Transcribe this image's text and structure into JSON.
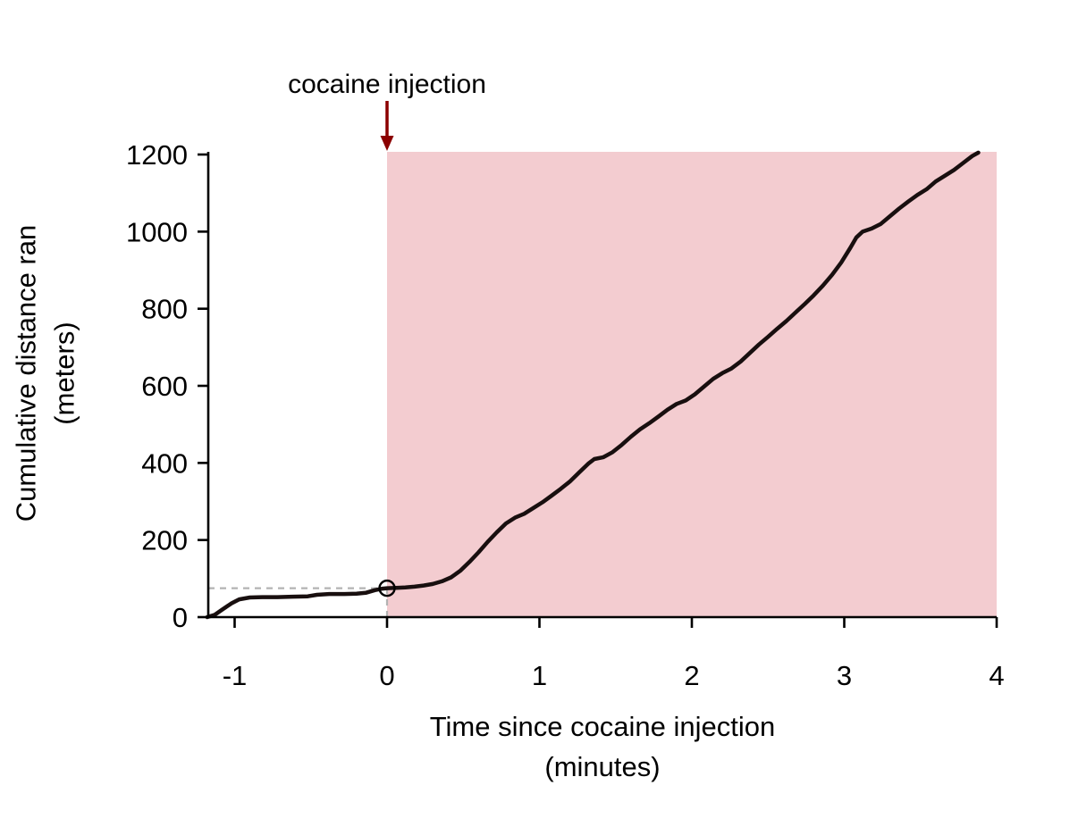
{
  "chart_data": {
    "type": "line",
    "title": "",
    "xlabel": "Time since cocaine injection (minutes)",
    "ylabel": "Cumulative distance ran (meters)",
    "labels": {
      "annotation": "cocaine injection",
      "xlabel_line1": "Time since cocaine injection",
      "xlabel_line2": "(minutes)",
      "ylabel_line1": "Cumulative distance ran",
      "ylabel_line2": "(meters)"
    },
    "x_ticks": [
      -1,
      0,
      1,
      2,
      3,
      4
    ],
    "y_ticks": [
      0,
      200,
      400,
      600,
      800,
      1000,
      1200
    ],
    "xlim": [
      -1.173,
      4
    ],
    "ylim": [
      0,
      1207
    ],
    "grid": false,
    "legend": "none",
    "shaded_region": {
      "x0": 0,
      "x1": 4,
      "color": "#f3ccd0"
    },
    "annotation_arrow": {
      "x": 0,
      "color": "#8b0000"
    },
    "injection_point": {
      "x": 0,
      "y": 75
    },
    "dashed_guides": {
      "y": 75,
      "x": 0,
      "color": "#b3b3b3"
    },
    "series": [
      {
        "name": "cumulative distance ran",
        "color": "#180f0f",
        "points": [
          [
            -1.18,
            0
          ],
          [
            -1.13,
            6
          ],
          [
            -1.08,
            20
          ],
          [
            -1.02,
            36
          ],
          [
            -0.97,
            46
          ],
          [
            -0.9,
            51
          ],
          [
            -0.82,
            52
          ],
          [
            -0.72,
            52
          ],
          [
            -0.62,
            53
          ],
          [
            -0.52,
            54
          ],
          [
            -0.46,
            58
          ],
          [
            -0.38,
            60
          ],
          [
            -0.28,
            60
          ],
          [
            -0.2,
            61
          ],
          [
            -0.14,
            63
          ],
          [
            -0.08,
            70
          ],
          [
            -0.03,
            74
          ],
          [
            0,
            75
          ],
          [
            0.06,
            76
          ],
          [
            0.12,
            77
          ],
          [
            0.18,
            79
          ],
          [
            0.24,
            82
          ],
          [
            0.3,
            86
          ],
          [
            0.36,
            93
          ],
          [
            0.42,
            103
          ],
          [
            0.48,
            120
          ],
          [
            0.54,
            143
          ],
          [
            0.6,
            168
          ],
          [
            0.66,
            195
          ],
          [
            0.72,
            220
          ],
          [
            0.78,
            243
          ],
          [
            0.84,
            258
          ],
          [
            0.9,
            268
          ],
          [
            0.96,
            283
          ],
          [
            1.02,
            298
          ],
          [
            1.08,
            315
          ],
          [
            1.14,
            333
          ],
          [
            1.2,
            352
          ],
          [
            1.26,
            375
          ],
          [
            1.32,
            398
          ],
          [
            1.36,
            410
          ],
          [
            1.42,
            415
          ],
          [
            1.48,
            428
          ],
          [
            1.54,
            447
          ],
          [
            1.6,
            468
          ],
          [
            1.66,
            487
          ],
          [
            1.72,
            503
          ],
          [
            1.78,
            520
          ],
          [
            1.84,
            538
          ],
          [
            1.9,
            553
          ],
          [
            1.96,
            562
          ],
          [
            2.02,
            578
          ],
          [
            2.08,
            598
          ],
          [
            2.14,
            618
          ],
          [
            2.2,
            633
          ],
          [
            2.26,
            645
          ],
          [
            2.32,
            663
          ],
          [
            2.38,
            685
          ],
          [
            2.44,
            707
          ],
          [
            2.5,
            727
          ],
          [
            2.56,
            748
          ],
          [
            2.62,
            768
          ],
          [
            2.68,
            790
          ],
          [
            2.74,
            812
          ],
          [
            2.8,
            835
          ],
          [
            2.86,
            860
          ],
          [
            2.92,
            888
          ],
          [
            2.98,
            920
          ],
          [
            3.04,
            958
          ],
          [
            3.08,
            985
          ],
          [
            3.12,
            1000
          ],
          [
            3.18,
            1008
          ],
          [
            3.24,
            1020
          ],
          [
            3.3,
            1040
          ],
          [
            3.36,
            1060
          ],
          [
            3.42,
            1078
          ],
          [
            3.48,
            1095
          ],
          [
            3.54,
            1110
          ],
          [
            3.6,
            1130
          ],
          [
            3.66,
            1145
          ],
          [
            3.72,
            1160
          ],
          [
            3.78,
            1178
          ],
          [
            3.84,
            1196
          ],
          [
            3.88,
            1205
          ]
        ]
      }
    ]
  }
}
